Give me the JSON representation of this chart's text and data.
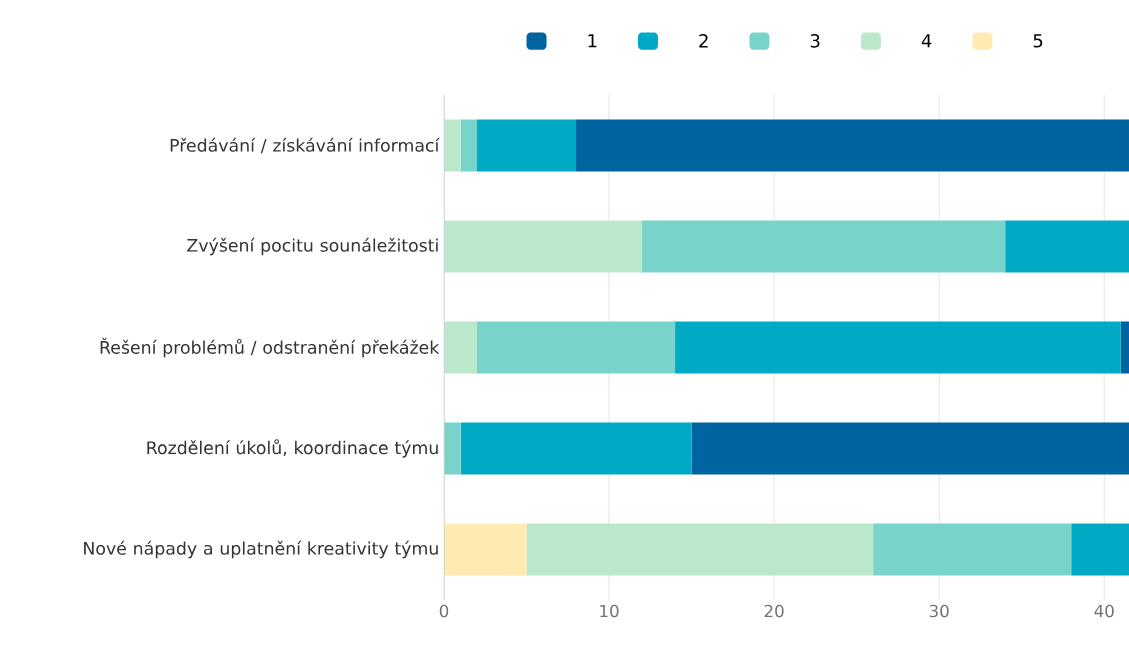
{
  "chart_data": {
    "type": "bar",
    "orientation": "horizontal",
    "stacked": true,
    "categories": [
      "Předávání / získávání informací",
      "Zvýšení pocitu sounáležitosti",
      "Řešení problémů / odstranění překážek",
      "Rozdělení úkolů, koordinace týmu",
      "Nové nápady a uplatnění kreativity týmu"
    ],
    "series": [
      {
        "name": "5",
        "color": "#ffeab1",
        "values": [
          null,
          null,
          null,
          null,
          5
        ]
      },
      {
        "name": "4",
        "color": "#bbe8cb",
        "values": [
          1,
          12,
          2,
          null,
          21
        ]
      },
      {
        "name": "3",
        "color": "#78d4cb",
        "values": [
          1,
          22,
          12,
          1,
          12
        ]
      },
      {
        "name": "2",
        "color": "#00a9c4",
        "values": [
          6,
          7.5,
          27,
          14,
          3.5
        ]
      },
      {
        "name": "1",
        "color": "#0064a0",
        "values": [
          33.5,
          null,
          0.5,
          26.5,
          null
        ]
      }
    ],
    "xlim": [
      0,
      41.5
    ],
    "xticks": [
      0,
      10,
      20,
      30,
      40
    ],
    "grid": "x",
    "legend": "top"
  }
}
